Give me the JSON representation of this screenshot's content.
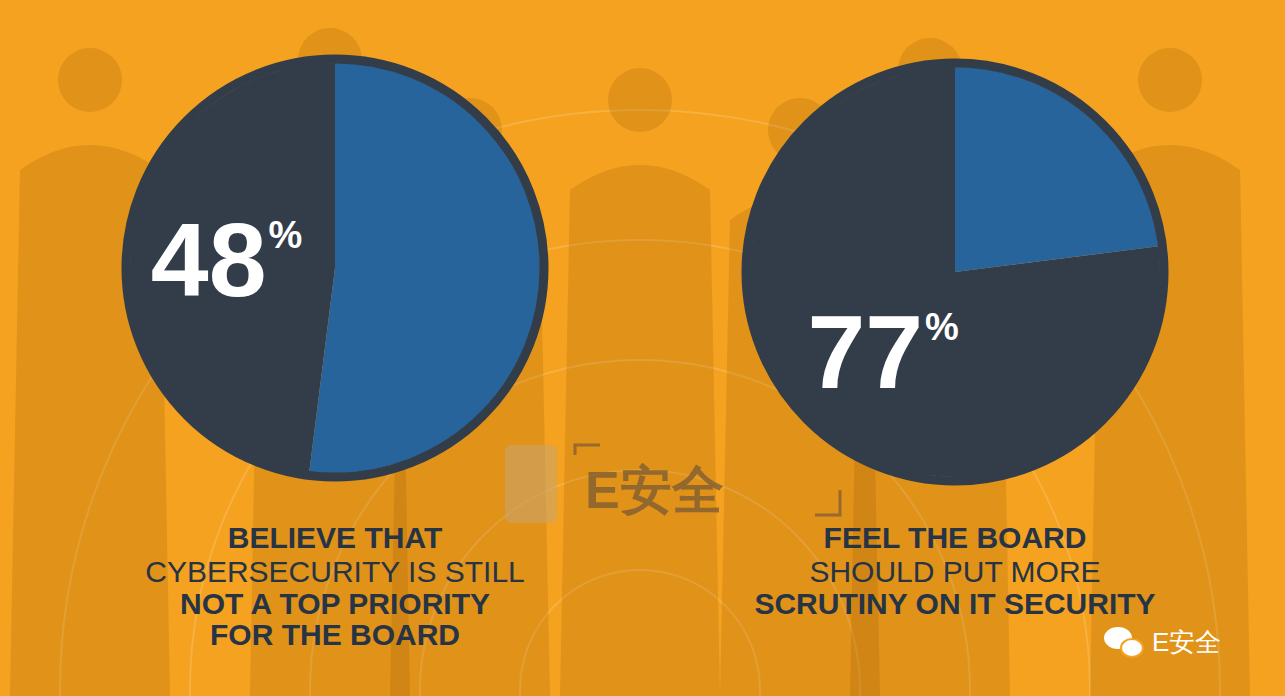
{
  "chart_data": [
    {
      "type": "pie",
      "values": [
        48,
        52
      ],
      "value_labels": [
        "48%",
        null
      ],
      "data_labels": true,
      "colors": [
        "#333d4a",
        "#27649c"
      ],
      "annotations": [
        "BELIEVE THAT",
        "CYBERSECURITY IS STILL",
        "NOT A TOP PRIORITY",
        "FOR THE BOARD"
      ]
    },
    {
      "type": "pie",
      "values": [
        77,
        23
      ],
      "value_labels": [
        "77%",
        null
      ],
      "data_labels": true,
      "colors": [
        "#333d4a",
        "#27649c"
      ],
      "annotations": [
        "FEEL THE BOARD",
        "SHOULD PUT MORE",
        "SCRUTINY ON IT SECURITY"
      ]
    }
  ],
  "watermarks": [
    "E安全",
    "E安全"
  ]
}
